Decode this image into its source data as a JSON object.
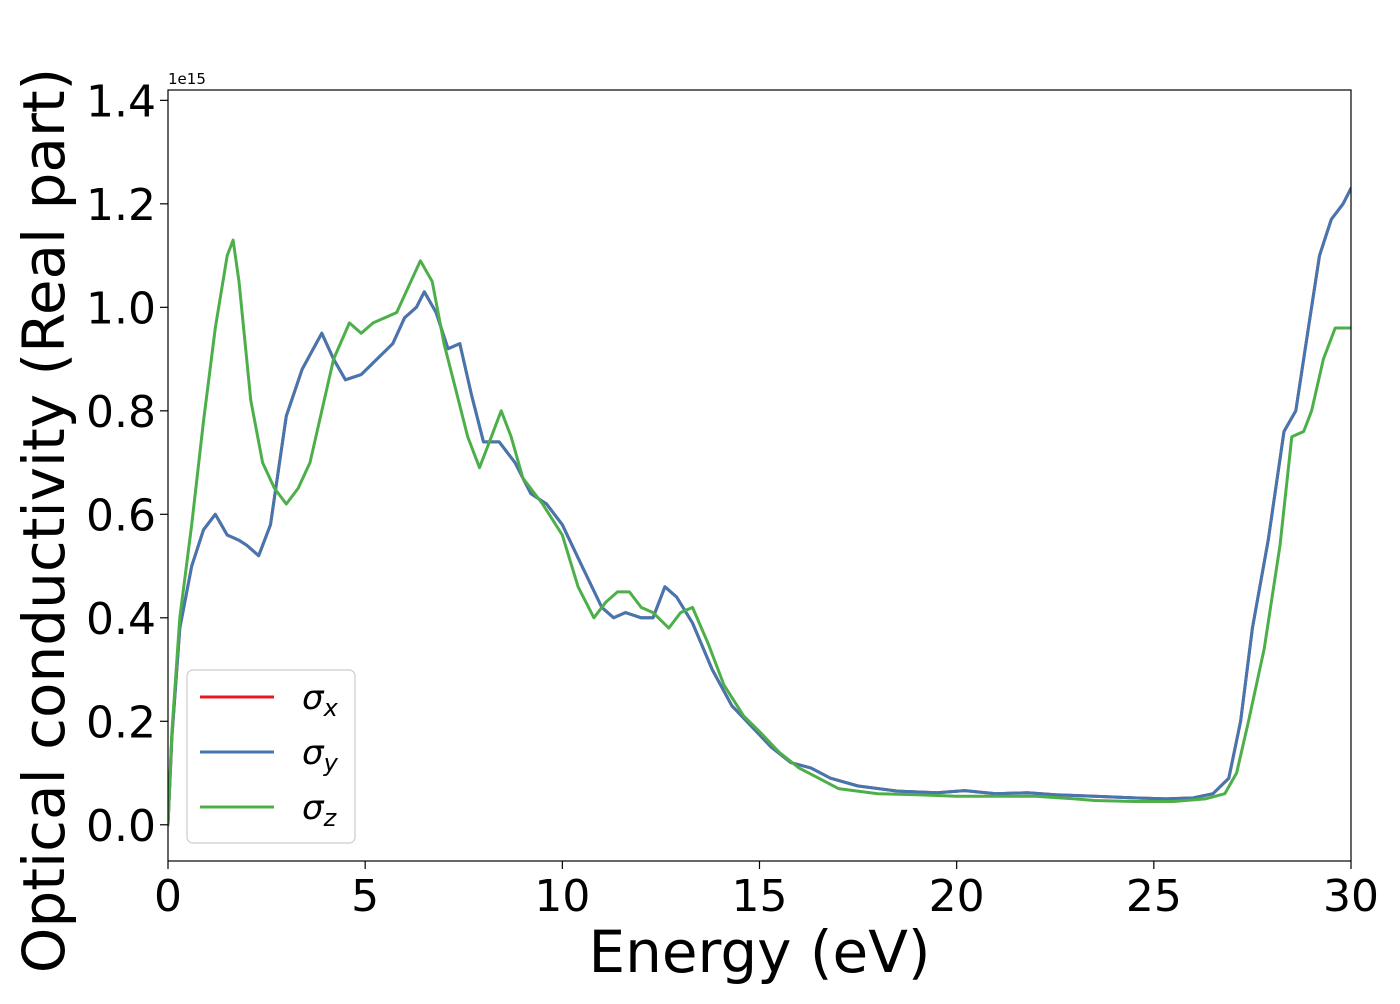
{
  "chart_data": {
    "type": "line",
    "title": "",
    "xlabel": "Energy (eV)",
    "ylabel": "Optical conductivity (Real part)",
    "y_offset_label": "1e15",
    "xlim": [
      0,
      30
    ],
    "ylim": [
      -0.07,
      1.42
    ],
    "x_ticks": [
      0,
      5,
      10,
      15,
      20,
      25,
      30
    ],
    "x_tick_labels": [
      "0",
      "5",
      "10",
      "15",
      "20",
      "25",
      "30"
    ],
    "y_ticks": [
      0.0,
      0.2,
      0.4,
      0.6,
      0.8,
      1.0,
      1.2,
      1.4
    ],
    "y_tick_labels": [
      "0.0",
      "0.2",
      "0.4",
      "0.6",
      "0.8",
      "1.0",
      "1.2",
      "1.4"
    ],
    "grid": false,
    "legend_position": "lower-left",
    "series": [
      {
        "name": "σx",
        "base": "σ",
        "sub": "x",
        "color": "#e41a1c",
        "x": [
          0,
          0.1,
          0.3,
          0.6,
          0.9,
          1.2,
          1.5,
          1.8,
          2.0,
          2.3,
          2.6,
          3.0,
          3.4,
          3.9,
          4.2,
          4.5,
          4.9,
          5.3,
          5.7,
          6.0,
          6.3,
          6.5,
          6.8,
          7.1,
          7.4,
          7.7,
          8.0,
          8.4,
          8.8,
          9.2,
          9.6,
          10.0,
          10.5,
          11.0,
          11.3,
          11.6,
          12.0,
          12.3,
          12.6,
          12.9,
          13.3,
          13.8,
          14.3,
          14.8,
          15.3,
          15.8,
          16.3,
          16.8,
          17.5,
          18.5,
          19.5,
          20.2,
          21.0,
          21.8,
          22.5,
          23.5,
          24.5,
          25.3,
          26.0,
          26.5,
          26.9,
          27.2,
          27.5,
          27.9,
          28.3,
          28.6,
          28.9,
          29.2,
          29.5,
          29.8,
          30.0
        ],
        "values": [
          0.0,
          0.17,
          0.38,
          0.5,
          0.57,
          0.6,
          0.56,
          0.55,
          0.54,
          0.52,
          0.58,
          0.79,
          0.88,
          0.95,
          0.9,
          0.86,
          0.87,
          0.9,
          0.93,
          0.98,
          1.0,
          1.03,
          0.99,
          0.92,
          0.93,
          0.83,
          0.74,
          0.74,
          0.7,
          0.64,
          0.62,
          0.58,
          0.5,
          0.42,
          0.4,
          0.41,
          0.4,
          0.4,
          0.46,
          0.44,
          0.39,
          0.3,
          0.23,
          0.19,
          0.15,
          0.12,
          0.11,
          0.09,
          0.075,
          0.065,
          0.062,
          0.066,
          0.06,
          0.062,
          0.058,
          0.055,
          0.052,
          0.05,
          0.052,
          0.06,
          0.09,
          0.2,
          0.38,
          0.55,
          0.76,
          0.8,
          0.95,
          1.1,
          1.17,
          1.2,
          1.23
        ]
      },
      {
        "name": "σy",
        "base": "σ",
        "sub": "y",
        "color": "#4477b0",
        "x": [
          0,
          0.1,
          0.3,
          0.6,
          0.9,
          1.2,
          1.5,
          1.8,
          2.0,
          2.3,
          2.6,
          3.0,
          3.4,
          3.9,
          4.2,
          4.5,
          4.9,
          5.3,
          5.7,
          6.0,
          6.3,
          6.5,
          6.8,
          7.1,
          7.4,
          7.7,
          8.0,
          8.4,
          8.8,
          9.2,
          9.6,
          10.0,
          10.5,
          11.0,
          11.3,
          11.6,
          12.0,
          12.3,
          12.6,
          12.9,
          13.3,
          13.8,
          14.3,
          14.8,
          15.3,
          15.8,
          16.3,
          16.8,
          17.5,
          18.5,
          19.5,
          20.2,
          21.0,
          21.8,
          22.5,
          23.5,
          24.5,
          25.3,
          26.0,
          26.5,
          26.9,
          27.2,
          27.5,
          27.9,
          28.3,
          28.6,
          28.9,
          29.2,
          29.5,
          29.8,
          30.0
        ],
        "values": [
          0.0,
          0.17,
          0.38,
          0.5,
          0.57,
          0.6,
          0.56,
          0.55,
          0.54,
          0.52,
          0.58,
          0.79,
          0.88,
          0.95,
          0.9,
          0.86,
          0.87,
          0.9,
          0.93,
          0.98,
          1.0,
          1.03,
          0.99,
          0.92,
          0.93,
          0.83,
          0.74,
          0.74,
          0.7,
          0.64,
          0.62,
          0.58,
          0.5,
          0.42,
          0.4,
          0.41,
          0.4,
          0.4,
          0.46,
          0.44,
          0.39,
          0.3,
          0.23,
          0.19,
          0.15,
          0.12,
          0.11,
          0.09,
          0.075,
          0.065,
          0.062,
          0.066,
          0.06,
          0.062,
          0.058,
          0.055,
          0.052,
          0.05,
          0.052,
          0.06,
          0.09,
          0.2,
          0.38,
          0.55,
          0.76,
          0.8,
          0.95,
          1.1,
          1.17,
          1.2,
          1.23
        ]
      },
      {
        "name": "σz",
        "base": "σ",
        "sub": "z",
        "color": "#4daf4a",
        "x": [
          0,
          0.1,
          0.3,
          0.6,
          0.9,
          1.2,
          1.5,
          1.65,
          1.8,
          2.1,
          2.4,
          2.7,
          3.0,
          3.3,
          3.6,
          3.9,
          4.2,
          4.6,
          4.9,
          5.2,
          5.5,
          5.8,
          6.1,
          6.4,
          6.7,
          7.0,
          7.3,
          7.6,
          7.9,
          8.2,
          8.45,
          8.7,
          9.0,
          9.5,
          10.0,
          10.4,
          10.8,
          11.1,
          11.4,
          11.7,
          12.0,
          12.3,
          12.7,
          13.0,
          13.3,
          13.7,
          14.1,
          14.6,
          15.0,
          15.5,
          16.0,
          16.5,
          17.0,
          18.0,
          19.0,
          20.0,
          21.0,
          22.0,
          23.0,
          23.5,
          24.5,
          25.5,
          26.3,
          26.8,
          27.1,
          27.4,
          27.8,
          28.2,
          28.5,
          28.8,
          29.0,
          29.3,
          29.6,
          29.8,
          30.0
        ],
        "values": [
          0.0,
          0.18,
          0.4,
          0.58,
          0.78,
          0.96,
          1.1,
          1.13,
          1.05,
          0.82,
          0.7,
          0.65,
          0.62,
          0.65,
          0.7,
          0.8,
          0.9,
          0.97,
          0.95,
          0.97,
          0.98,
          0.99,
          1.04,
          1.09,
          1.05,
          0.93,
          0.84,
          0.75,
          0.69,
          0.75,
          0.8,
          0.75,
          0.67,
          0.62,
          0.56,
          0.46,
          0.4,
          0.43,
          0.45,
          0.45,
          0.42,
          0.41,
          0.38,
          0.41,
          0.42,
          0.35,
          0.27,
          0.21,
          0.18,
          0.14,
          0.11,
          0.09,
          0.07,
          0.06,
          0.058,
          0.055,
          0.055,
          0.055,
          0.05,
          0.047,
          0.045,
          0.045,
          0.05,
          0.06,
          0.1,
          0.2,
          0.34,
          0.54,
          0.75,
          0.76,
          0.8,
          0.9,
          0.96,
          0.96,
          0.96
        ]
      }
    ]
  }
}
